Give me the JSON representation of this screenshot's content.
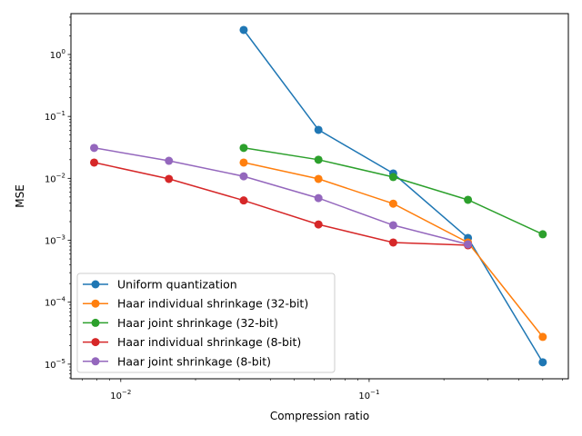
{
  "chart_data": {
    "type": "line",
    "title": "",
    "xlabel": "Compression ratio",
    "ylabel": "MSE",
    "xscale": "log",
    "yscale": "log",
    "xlim": [
      0.0063,
      0.634
    ],
    "ylim": [
      5.8e-06,
      4.57
    ],
    "grid": false,
    "legend_position": "lower-left",
    "x_tick_labels": [
      {
        "value": 0.01,
        "base": "10",
        "exp": "−2"
      },
      {
        "value": 0.1,
        "base": "10",
        "exp": "−1"
      }
    ],
    "y_tick_labels": [
      {
        "value": 1,
        "base": "10",
        "exp": "0"
      },
      {
        "value": 0.1,
        "base": "10",
        "exp": "−1"
      },
      {
        "value": 0.01,
        "base": "10",
        "exp": "−2"
      },
      {
        "value": 0.001,
        "base": "10",
        "exp": "−3"
      },
      {
        "value": 0.0001,
        "base": "10",
        "exp": "−4"
      },
      {
        "value": 1e-05,
        "base": "10",
        "exp": "−5"
      }
    ],
    "series": [
      {
        "name": "Uniform quantization",
        "color": "#1f77b4",
        "x": [
          0.03125,
          0.0625,
          0.125,
          0.25,
          0.5
        ],
        "y": [
          2.49,
          0.0607,
          0.012,
          0.00109,
          1.07e-05
        ]
      },
      {
        "name": "Haar individual shrinkage (32-bit)",
        "color": "#ff7f0e",
        "x": [
          0.03125,
          0.0625,
          0.125,
          0.25,
          0.5
        ],
        "y": [
          0.018,
          0.0098,
          0.0039,
          0.00092,
          2.75e-05
        ]
      },
      {
        "name": "Haar joint shrinkage (32-bit)",
        "color": "#2ca02c",
        "x": [
          0.03125,
          0.0625,
          0.125,
          0.25,
          0.5
        ],
        "y": [
          0.031,
          0.02,
          0.0105,
          0.0045,
          0.00125
        ]
      },
      {
        "name": "Haar individual shrinkage (8-bit)",
        "color": "#d62728",
        "x": [
          0.0078125,
          0.015625,
          0.03125,
          0.0625,
          0.125,
          0.25
        ],
        "y": [
          0.018,
          0.0098,
          0.0044,
          0.0018,
          0.00092,
          0.00083
        ]
      },
      {
        "name": "Haar joint shrinkage (8-bit)",
        "color": "#9467bd",
        "x": [
          0.0078125,
          0.015625,
          0.03125,
          0.0625,
          0.125,
          0.25
        ],
        "y": [
          0.031,
          0.0192,
          0.0108,
          0.0048,
          0.00175,
          0.00086
        ]
      }
    ]
  }
}
